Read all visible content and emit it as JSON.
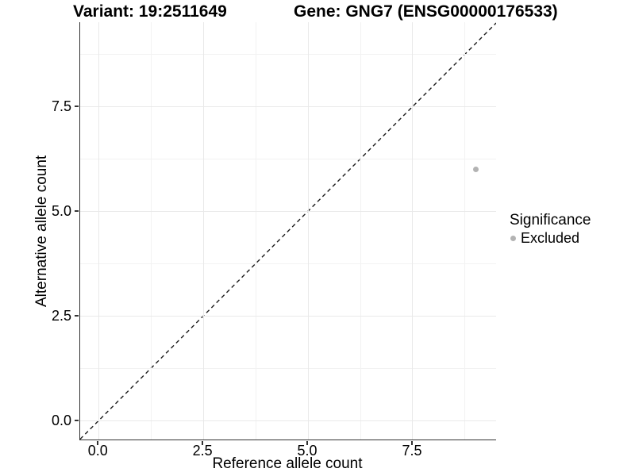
{
  "header": {
    "variant_title": "Variant: 19:2511649",
    "gene_title": "Gene: GNG7 (ENSG00000176533)"
  },
  "chart_data": {
    "type": "scatter",
    "title_left": "Variant: 19:2511649",
    "title_right": "Gene: GNG7 (ENSG00000176533)",
    "xlabel": "Reference allele count",
    "ylabel": "Alternative allele count",
    "xlim": [
      -0.44,
      9.49
    ],
    "ylim": [
      -0.45,
      9.51
    ],
    "x_major_ticks": [
      0.0,
      2.5,
      5.0,
      7.5
    ],
    "y_major_ticks": [
      0.0,
      2.5,
      5.0,
      7.5
    ],
    "x_tick_labels": [
      "0.0",
      "2.5",
      "5.0",
      "7.5"
    ],
    "y_tick_labels": [
      "0.0",
      "2.5",
      "5.0",
      "7.5"
    ],
    "x_minor_gridlines": [
      1.25,
      3.75,
      6.25,
      8.75
    ],
    "y_minor_gridlines": [
      1.25,
      3.75,
      6.25,
      8.75
    ],
    "grid": "major+minor",
    "identity_line": {
      "slope": 1,
      "intercept": 0,
      "style": "dashed",
      "color": "#1a1a1a"
    },
    "series": [
      {
        "name": "Excluded",
        "color": "#b3b3b3",
        "points": [
          {
            "x": 9,
            "y": 6
          }
        ]
      }
    ],
    "legend": {
      "title": "Significance",
      "position": "right",
      "entries": [
        {
          "label": "Excluded",
          "color": "#b3b3b3"
        }
      ]
    }
  },
  "colors": {
    "background": "#ffffff",
    "grid_major": "#e9e9e9",
    "grid_minor": "#f2f2f2",
    "axis_line": "#333333",
    "text": "#000000"
  }
}
